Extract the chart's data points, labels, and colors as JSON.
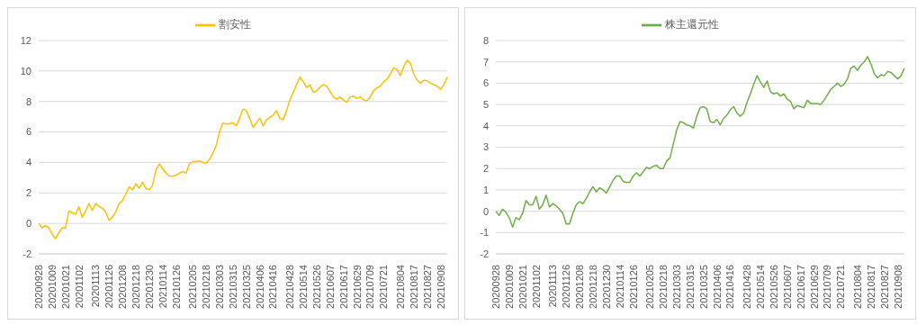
{
  "chart_data": [
    {
      "type": "line",
      "categories": [
        "20200928",
        null,
        null,
        null,
        "20201009",
        null,
        null,
        null,
        "20201021",
        null,
        null,
        null,
        "20201102",
        null,
        null,
        null,
        null,
        "20201113",
        null,
        null,
        null,
        "20201126",
        null,
        null,
        null,
        "20201208",
        null,
        null,
        null,
        "20201218",
        null,
        null,
        null,
        "20201230",
        null,
        null,
        null,
        "20210114",
        null,
        null,
        null,
        "20210126",
        null,
        null,
        null,
        null,
        "20210205",
        null,
        null,
        null,
        "20210218",
        null,
        null,
        null,
        "20210303",
        null,
        null,
        null,
        "20210315",
        null,
        null,
        null,
        "20210325",
        null,
        null,
        null,
        "20210406",
        null,
        null,
        null,
        "20210416",
        null,
        null,
        null,
        null,
        "20210428",
        null,
        null,
        null,
        "20210514",
        null,
        null,
        null,
        "20210526",
        null,
        null,
        null,
        "20210607",
        null,
        null,
        null,
        "20210617",
        null,
        null,
        null,
        "20210629",
        null,
        null,
        null,
        "20210709",
        null,
        null,
        null,
        "20210721",
        null,
        null,
        null,
        null,
        "20210804",
        null,
        null,
        null,
        "20210817",
        null,
        null,
        null,
        "20210827",
        null,
        null,
        null,
        "20210908",
        null,
        null
      ],
      "series": [
        {
          "name": "割安性",
          "color": "#ffc000",
          "values": [
            0,
            -0.3,
            -0.15,
            -0.3,
            -0.7,
            -1.0,
            -0.6,
            -0.3,
            -0.3,
            0.8,
            0.7,
            0.6,
            1.1,
            0.4,
            0.8,
            1.3,
            0.85,
            1.3,
            1.1,
            1.0,
            0.75,
            0.2,
            0.4,
            0.75,
            1.3,
            1.5,
            1.9,
            2.4,
            2.2,
            2.6,
            2.3,
            2.7,
            2.3,
            2.2,
            2.5,
            3.5,
            3.9,
            3.6,
            3.3,
            3.1,
            3.1,
            3.15,
            3.3,
            3.4,
            3.3,
            3.9,
            4.05,
            4.05,
            4.1,
            4.0,
            3.95,
            4.2,
            4.6,
            5.1,
            6.0,
            6.6,
            6.5,
            6.55,
            6.6,
            6.4,
            6.9,
            7.5,
            7.4,
            6.9,
            6.3,
            6.6,
            6.9,
            6.4,
            6.8,
            6.95,
            7.1,
            7.4,
            6.9,
            6.8,
            7.4,
            8.1,
            8.6,
            9.1,
            9.6,
            9.3,
            8.9,
            9.1,
            8.6,
            8.7,
            8.95,
            9.1,
            9.0,
            8.65,
            8.3,
            8.15,
            8.3,
            8.1,
            7.95,
            8.3,
            8.35,
            8.2,
            8.3,
            8.1,
            8.05,
            8.3,
            8.7,
            8.9,
            9.0,
            9.3,
            9.45,
            9.8,
            10.2,
            10.1,
            9.7,
            10.3,
            10.7,
            10.5,
            9.8,
            9.4,
            9.2,
            9.4,
            9.35,
            9.2,
            9.1,
            9.0,
            8.8,
            9.1,
            9.6
          ]
        }
      ],
      "ylim": [
        -2,
        12
      ],
      "yticks": [
        -2,
        0,
        2,
        4,
        6,
        8,
        10,
        12
      ],
      "grid": "y",
      "legend": "top",
      "marker": "none"
    },
    {
      "type": "line",
      "categories": [
        "20200928",
        null,
        null,
        null,
        "20201009",
        null,
        null,
        null,
        "20201021",
        null,
        null,
        null,
        "20201102",
        null,
        null,
        null,
        null,
        "20201113",
        null,
        null,
        null,
        "20201126",
        null,
        null,
        null,
        "20201208",
        null,
        null,
        null,
        "20201218",
        null,
        null,
        null,
        "20201230",
        null,
        null,
        null,
        "20210114",
        null,
        null,
        null,
        "20210126",
        null,
        null,
        null,
        null,
        "20210205",
        null,
        null,
        null,
        "20210218",
        null,
        null,
        null,
        "20210303",
        null,
        null,
        null,
        "20210315",
        null,
        null,
        null,
        "20210325",
        null,
        null,
        null,
        "20210406",
        null,
        null,
        null,
        "20210416",
        null,
        null,
        null,
        null,
        "20210428",
        null,
        null,
        null,
        "20210514",
        null,
        null,
        null,
        "20210526",
        null,
        null,
        null,
        "20210607",
        null,
        null,
        null,
        "20210617",
        null,
        null,
        null,
        "20210629",
        null,
        null,
        null,
        "20210709",
        null,
        null,
        null,
        "20210721",
        null,
        null,
        null,
        null,
        "20210804",
        null,
        null,
        null,
        "20210817",
        null,
        null,
        null,
        "20210827",
        null,
        null,
        null,
        "20210908",
        null,
        null
      ],
      "series": [
        {
          "name": "株主還元性",
          "color": "#70ad47",
          "values": [
            0,
            -0.2,
            0.1,
            -0.05,
            -0.3,
            -0.75,
            -0.3,
            -0.4,
            -0.1,
            0.5,
            0.3,
            0.3,
            0.7,
            0.1,
            0.3,
            0.75,
            0.2,
            0.35,
            0.25,
            0.1,
            -0.1,
            -0.6,
            -0.6,
            -0.1,
            0.3,
            0.45,
            0.35,
            0.6,
            0.9,
            1.15,
            0.9,
            1.1,
            1.0,
            0.85,
            1.15,
            1.45,
            1.65,
            1.65,
            1.4,
            1.35,
            1.35,
            1.65,
            1.8,
            1.65,
            1.85,
            2.05,
            2.0,
            2.1,
            2.15,
            2.0,
            2.0,
            2.35,
            2.5,
            3.15,
            3.8,
            4.2,
            4.15,
            4.05,
            4.0,
            3.9,
            4.45,
            4.85,
            4.9,
            4.8,
            4.2,
            4.15,
            4.3,
            4.05,
            4.35,
            4.5,
            4.75,
            4.9,
            4.6,
            4.45,
            4.6,
            5.1,
            5.5,
            5.95,
            6.35,
            6.05,
            5.8,
            6.1,
            5.6,
            5.5,
            5.55,
            5.4,
            5.5,
            5.25,
            5.15,
            4.8,
            4.95,
            4.9,
            4.85,
            5.2,
            5.05,
            5.05,
            5.05,
            5.0,
            5.2,
            5.45,
            5.7,
            5.85,
            6.0,
            5.85,
            5.95,
            6.2,
            6.7,
            6.8,
            6.6,
            6.85,
            7.0,
            7.25,
            6.9,
            6.45,
            6.25,
            6.4,
            6.35,
            6.55,
            6.5,
            6.35,
            6.2,
            6.35,
            6.7
          ]
        }
      ],
      "ylim": [
        -2,
        8
      ],
      "yticks": [
        -2,
        -1,
        0,
        1,
        2,
        3,
        4,
        5,
        6,
        7,
        8
      ],
      "grid": "y",
      "legend": "top",
      "marker": "none"
    }
  ]
}
